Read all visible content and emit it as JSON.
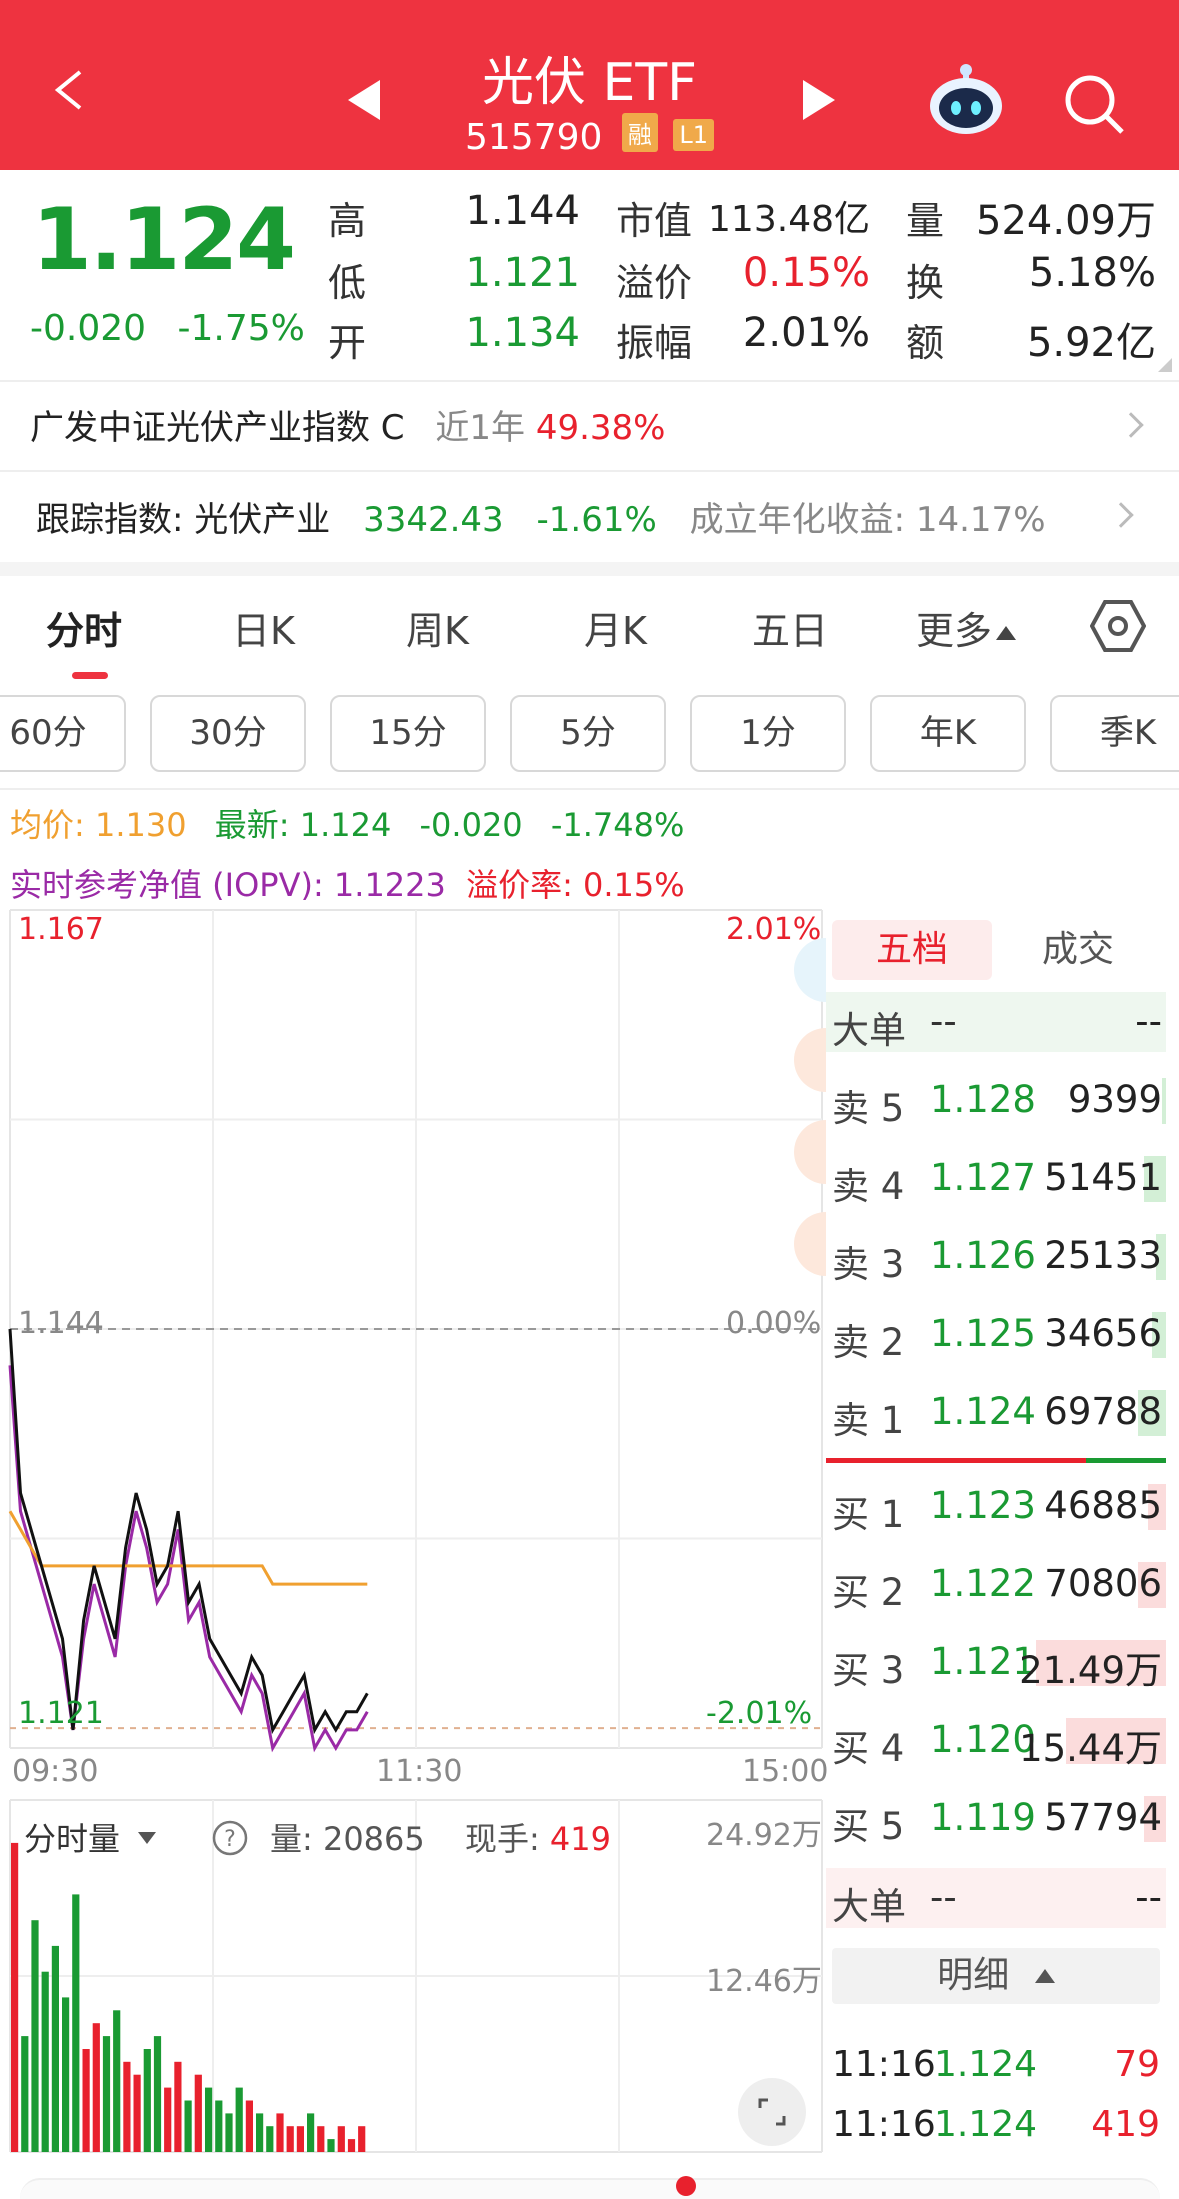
{
  "header": {
    "title": "光伏 ETF",
    "code": "515790",
    "badge_rong": "融",
    "badge_l1": "L1"
  },
  "quote": {
    "price": "1.124",
    "change": "-0.020",
    "change_pct": "-1.75%",
    "high_label": "高",
    "high": "1.144",
    "low_label": "低",
    "low": "1.121",
    "open_label": "开",
    "open": "1.134",
    "mktcap_label": "市值",
    "mktcap": "113.48亿",
    "premium_label": "溢价",
    "premium": "0.15%",
    "amp_label": "振幅",
    "amp": "2.01%",
    "vol_label": "量",
    "vol": "524.09万",
    "turn_label": "换",
    "turn": "5.18%",
    "amt_label": "额",
    "amt": "5.92亿"
  },
  "index_info": {
    "name": "广发中证光伏产业指数 C",
    "period": "近1年",
    "period_return": "49.38%",
    "track_label": "跟踪指数: 光伏产业",
    "track_value": "3342.43",
    "track_change": "-1.61%",
    "since_label": "成立年化收益: 14.17%"
  },
  "tabs": [
    "分时",
    "日K",
    "周K",
    "月K",
    "五日",
    "更多"
  ],
  "periods": [
    "60分",
    "30分",
    "15分",
    "5分",
    "1分",
    "年K",
    "季K"
  ],
  "legend": {
    "avg_label": "均价: 1.130",
    "latest_label": "最新: 1.124",
    "latest_change": "-0.020",
    "latest_pct": "-1.748%",
    "iopv_label": "实时参考净值 (IOPV): 1.1223",
    "premium_rate": "溢价率: 0.15%"
  },
  "chart_data": {
    "type": "line",
    "title": "",
    "y_max_label": "1.167",
    "y_mid_label": "1.144",
    "y_min_label": "1.121",
    "pct_max_label": "2.01%",
    "pct_mid_label": "0.00%",
    "pct_min_label": "-2.01%",
    "x_ticks": [
      "09:30",
      "11:30",
      "15:00"
    ],
    "ylim": [
      1.121,
      1.167
    ],
    "prev_close": 1.144,
    "series": [
      {
        "values": [
          1.144,
          1.135,
          1.133,
          1.131,
          1.129,
          1.127,
          1.122,
          1.128,
          1.131,
          1.129,
          1.127,
          1.132,
          1.135,
          1.133,
          1.13,
          1.131,
          1.134,
          1.129,
          1.13,
          1.127,
          1.126,
          1.125,
          1.124,
          1.126,
          1.125,
          1.122,
          1.123,
          1.124,
          1.125,
          1.122,
          1.123,
          1.122,
          1.123,
          1.123,
          1.124
        ]
      },
      {
        "values": [
          1.134,
          1.133,
          1.132,
          1.131,
          1.131,
          1.131,
          1.131,
          1.131,
          1.131,
          1.131,
          1.131,
          1.131,
          1.131,
          1.131,
          1.131,
          1.131,
          1.131,
          1.131,
          1.131,
          1.131,
          1.131,
          1.131,
          1.131,
          1.131,
          1.131,
          1.13,
          1.13,
          1.13,
          1.13,
          1.13,
          1.13,
          1.13,
          1.13,
          1.13,
          1.13
        ]
      },
      {
        "values": [
          1.142,
          1.134,
          1.132,
          1.13,
          1.128,
          1.126,
          1.122,
          1.127,
          1.13,
          1.128,
          1.126,
          1.131,
          1.134,
          1.132,
          1.129,
          1.13,
          1.133,
          1.128,
          1.129,
          1.126,
          1.125,
          1.124,
          1.123,
          1.125,
          1.124,
          1.121,
          1.122,
          1.123,
          1.124,
          1.121,
          1.122,
          1.121,
          1.122,
          1.122,
          1.123
        ]
      }
    ],
    "volume_label": "分时量",
    "volume_text": "量: 20865",
    "volume_value": "20865",
    "hand_label": "现手:",
    "hand_value": "419",
    "vol_max_label": "24.92万",
    "vol_mid_label": "12.46万",
    "volumes": [
      24,
      9,
      18,
      14,
      16,
      12,
      20,
      8,
      10,
      9,
      11,
      7,
      6,
      8,
      9,
      5,
      7,
      4,
      6,
      5,
      4,
      3,
      5,
      4,
      3,
      2,
      3,
      2,
      2,
      3,
      2,
      1,
      2,
      1,
      2
    ]
  },
  "orderbook": {
    "tab_active": "五档",
    "tab_other": "成交",
    "big_label": "大单",
    "big_left": "--",
    "big_right": "--",
    "asks": [
      {
        "label": "卖 5",
        "price": "1.128",
        "vol": "9399"
      },
      {
        "label": "卖 4",
        "price": "1.127",
        "vol": "51451"
      },
      {
        "label": "卖 3",
        "price": "1.126",
        "vol": "25133"
      },
      {
        "label": "卖 2",
        "price": "1.125",
        "vol": "34656"
      },
      {
        "label": "卖 1",
        "price": "1.124",
        "vol": "69788"
      }
    ],
    "bids": [
      {
        "label": "买 1",
        "price": "1.123",
        "vol": "46885"
      },
      {
        "label": "买 2",
        "price": "1.122",
        "vol": "70806"
      },
      {
        "label": "买 3",
        "price": "1.121",
        "vol": "21.49万"
      },
      {
        "label": "买 4",
        "price": "1.120",
        "vol": "15.44万"
      },
      {
        "label": "买 5",
        "price": "1.119",
        "vol": "57794"
      }
    ],
    "detail_label": "明细",
    "ticks": [
      {
        "time": "11:16",
        "price": "1.124",
        "vol": "79"
      },
      {
        "time": "11:16",
        "price": "1.124",
        "vol": "419"
      }
    ]
  },
  "colors": {
    "header_red": "#ee3340",
    "up_red": "#e8212d",
    "down_green": "#1a9a33",
    "avg_orange": "#f0a030",
    "iopv_purple": "#9a2aa6"
  }
}
